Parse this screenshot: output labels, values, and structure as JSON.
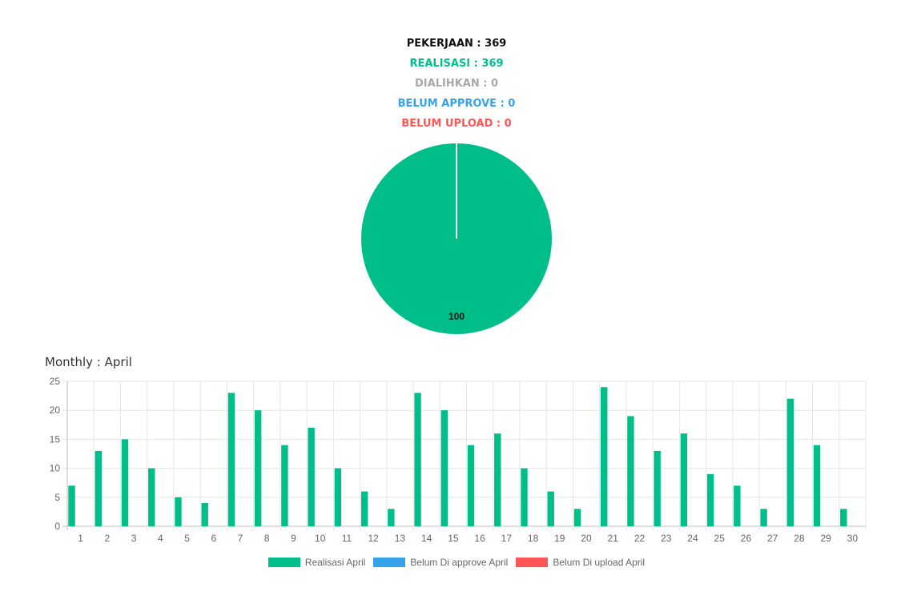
{
  "stats": {
    "pekerjaan": "PEKERJAAN : 369",
    "realisasi": "REALISASI : 369",
    "dialihkan": "DIALIHKAN : 0",
    "belum_approve": "BELUM APPROVE : 0",
    "belum_upload": "BELUM UPLOAD : 0"
  },
  "colors": {
    "pekerjaan": "#111111",
    "realisasi": "#00be8a",
    "dialihkan": "#a8a8a8",
    "belum_approve": "#36a2eb",
    "belum_upload": "#ff5555"
  },
  "monthly_title": "Monthly : April",
  "chart_data": [
    {
      "type": "pie",
      "slices": [
        {
          "label": "Realisasi",
          "value": 100,
          "color": "#00be8a"
        }
      ],
      "data_labels": [
        "100"
      ]
    },
    {
      "type": "bar",
      "categories": [
        "1",
        "2",
        "3",
        "4",
        "5",
        "6",
        "7",
        "8",
        "9",
        "10",
        "11",
        "12",
        "13",
        "14",
        "15",
        "16",
        "17",
        "18",
        "19",
        "20",
        "21",
        "22",
        "23",
        "24",
        "25",
        "26",
        "27",
        "28",
        "29",
        "30"
      ],
      "series": [
        {
          "name": "Realisasi April",
          "color": "#00be8a",
          "values": [
            7,
            13,
            15,
            10,
            5,
            4,
            23,
            20,
            14,
            17,
            10,
            6,
            3,
            23,
            20,
            14,
            16,
            10,
            6,
            3,
            24,
            19,
            13,
            16,
            9,
            7,
            3,
            22,
            14,
            3
          ]
        },
        {
          "name": "Belum Di approve April",
          "color": "#36a2eb",
          "values": [
            0,
            0,
            0,
            0,
            0,
            0,
            0,
            0,
            0,
            0,
            0,
            0,
            0,
            0,
            0,
            0,
            0,
            0,
            0,
            0,
            0,
            0,
            0,
            0,
            0,
            0,
            0,
            0,
            0,
            0
          ]
        },
        {
          "name": "Belum Di upload April",
          "color": "#ff5555",
          "values": [
            0,
            0,
            0,
            0,
            0,
            0,
            0,
            0,
            0,
            0,
            0,
            0,
            0,
            0,
            0,
            0,
            0,
            0,
            0,
            0,
            0,
            0,
            0,
            0,
            0,
            0,
            0,
            0,
            0,
            0
          ]
        }
      ],
      "yticks": [
        "0",
        "5",
        "10",
        "15",
        "20",
        "25"
      ],
      "ylim": [
        0,
        25
      ],
      "grid": true,
      "legend": "bottom"
    }
  ]
}
